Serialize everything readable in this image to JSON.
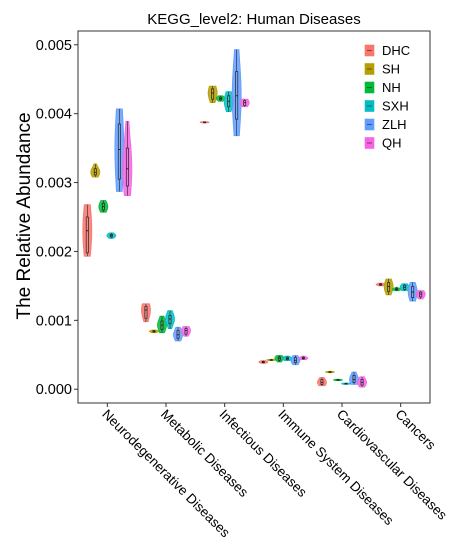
{
  "chart_data": {
    "type": "violin",
    "title": "KEGG_level2: Human Diseases",
    "xlabel": "",
    "ylabel": "The Relative Abundance",
    "ylim": [
      -0.0002,
      0.0052
    ],
    "yticks": [
      0.0,
      0.001,
      0.002,
      0.003,
      0.004,
      0.005
    ],
    "ytick_labels": [
      "0.000",
      "0.001",
      "0.002",
      "0.003",
      "0.004",
      "0.005"
    ],
    "grid": false,
    "legend_position": "top-right",
    "categories": [
      "Neurodegenerative Diseases",
      "Metabolic Diseases",
      "Infectious Diseases",
      "Immune System Diseases",
      "Cardiovascular Diseases",
      "Cancers"
    ],
    "series": [
      {
        "name": "DHC",
        "color": "#F8766D",
        "stats": [
          {
            "min": 0.00193,
            "q1": 0.00198,
            "median": 0.0023,
            "q3": 0.0025,
            "max": 0.00268
          },
          {
            "min": 0.00098,
            "q1": 0.00103,
            "median": 0.00115,
            "q3": 0.0012,
            "max": 0.00124
          },
          {
            "min": 0.003865,
            "q1": 0.00387,
            "median": 0.003875,
            "q3": 0.00388,
            "max": 0.003885
          },
          {
            "min": 0.000375,
            "q1": 0.000385,
            "median": 0.000395,
            "q3": 0.000405,
            "max": 0.000415
          },
          {
            "min": 5e-05,
            "q1": 7e-05,
            "median": 0.0001,
            "q3": 0.00014,
            "max": 0.00017
          },
          {
            "min": 0.0015,
            "q1": 0.00151,
            "median": 0.00152,
            "q3": 0.00153,
            "max": 0.00154
          }
        ]
      },
      {
        "name": "SH",
        "color": "#B79F00",
        "stats": [
          {
            "min": 0.00308,
            "q1": 0.00311,
            "median": 0.00315,
            "q3": 0.0032,
            "max": 0.00327
          },
          {
            "min": 0.00082,
            "q1": 0.00083,
            "median": 0.00084,
            "q3": 0.00085,
            "max": 0.00086
          },
          {
            "min": 0.00416,
            "q1": 0.00421,
            "median": 0.0043,
            "q3": 0.00436,
            "max": 0.0044
          },
          {
            "min": 0.000415,
            "q1": 0.00042,
            "median": 0.000425,
            "q3": 0.00043,
            "max": 0.000435
          },
          {
            "min": 0.00024,
            "q1": 0.000245,
            "median": 0.00025,
            "q3": 0.000255,
            "max": 0.00026
          },
          {
            "min": 0.00137,
            "q1": 0.00142,
            "median": 0.00149,
            "q3": 0.00155,
            "max": 0.0016
          }
        ]
      },
      {
        "name": "NH",
        "color": "#00BA38",
        "stats": [
          {
            "min": 0.00257,
            "q1": 0.0026,
            "median": 0.00265,
            "q3": 0.0027,
            "max": 0.00274
          },
          {
            "min": 0.00082,
            "q1": 0.00087,
            "median": 0.00093,
            "q3": 0.00099,
            "max": 0.00106
          },
          {
            "min": 0.00418,
            "q1": 0.0042,
            "median": 0.00422,
            "q3": 0.00424,
            "max": 0.00426
          },
          {
            "min": 0.000395,
            "q1": 0.00042,
            "median": 0.00045,
            "q3": 0.00047,
            "max": 0.00049
          },
          {
            "min": 0.000125,
            "q1": 0.00013,
            "median": 0.000135,
            "q3": 0.00014,
            "max": 0.000145
          },
          {
            "min": 0.00143,
            "q1": 0.00144,
            "median": 0.00145,
            "q3": 0.00146,
            "max": 0.00148
          }
        ]
      },
      {
        "name": "SXH",
        "color": "#00BFC4",
        "stats": [
          {
            "min": 0.00219,
            "q1": 0.00221,
            "median": 0.00223,
            "q3": 0.00225,
            "max": 0.00227
          },
          {
            "min": 0.00088,
            "q1": 0.00095,
            "median": 0.00102,
            "q3": 0.00107,
            "max": 0.00114
          },
          {
            "min": 0.00403,
            "q1": 0.0041,
            "median": 0.00418,
            "q3": 0.00426,
            "max": 0.00432
          },
          {
            "min": 0.000415,
            "q1": 0.00043,
            "median": 0.000445,
            "q3": 0.000465,
            "max": 0.00048
          },
          {
            "min": 7e-05,
            "q1": 7.5e-05,
            "median": 8e-05,
            "q3": 8.5e-05,
            "max": 9e-05
          },
          {
            "min": 0.00143,
            "q1": 0.00145,
            "median": 0.00148,
            "q3": 0.00151,
            "max": 0.00153
          }
        ]
      },
      {
        "name": "ZLH",
        "color": "#619CFF",
        "stats": [
          {
            "min": 0.00287,
            "q1": 0.00305,
            "median": 0.00348,
            "q3": 0.00385,
            "max": 0.00407
          },
          {
            "min": 0.0007,
            "q1": 0.00074,
            "median": 0.00079,
            "q3": 0.00085,
            "max": 0.0009
          },
          {
            "min": 0.00368,
            "q1": 0.00392,
            "median": 0.00426,
            "q3": 0.00461,
            "max": 0.00493
          },
          {
            "min": 0.000355,
            "q1": 0.000385,
            "median": 0.00042,
            "q3": 0.00046,
            "max": 0.00049
          },
          {
            "min": 7e-05,
            "q1": 0.0001,
            "median": 0.00014,
            "q3": 0.0002,
            "max": 0.00025
          },
          {
            "min": 0.00128,
            "q1": 0.00133,
            "median": 0.00141,
            "q3": 0.00149,
            "max": 0.00155
          }
        ]
      },
      {
        "name": "QH",
        "color": "#F564E3",
        "stats": [
          {
            "min": 0.00281,
            "q1": 0.00295,
            "median": 0.0032,
            "q3": 0.0035,
            "max": 0.00389
          },
          {
            "min": 0.00077,
            "q1": 0.0008,
            "median": 0.00085,
            "q3": 0.00088,
            "max": 0.00091
          },
          {
            "min": 0.0041,
            "q1": 0.00412,
            "median": 0.00416,
            "q3": 0.00419,
            "max": 0.00421
          },
          {
            "min": 0.00043,
            "q1": 0.00044,
            "median": 0.00045,
            "q3": 0.000465,
            "max": 0.00048
          },
          {
            "min": 3e-05,
            "q1": 6e-05,
            "median": 0.0001,
            "q3": 0.00014,
            "max": 0.00018
          },
          {
            "min": 0.00131,
            "q1": 0.00134,
            "median": 0.00138,
            "q3": 0.00141,
            "max": 0.00143
          }
        ]
      }
    ]
  }
}
